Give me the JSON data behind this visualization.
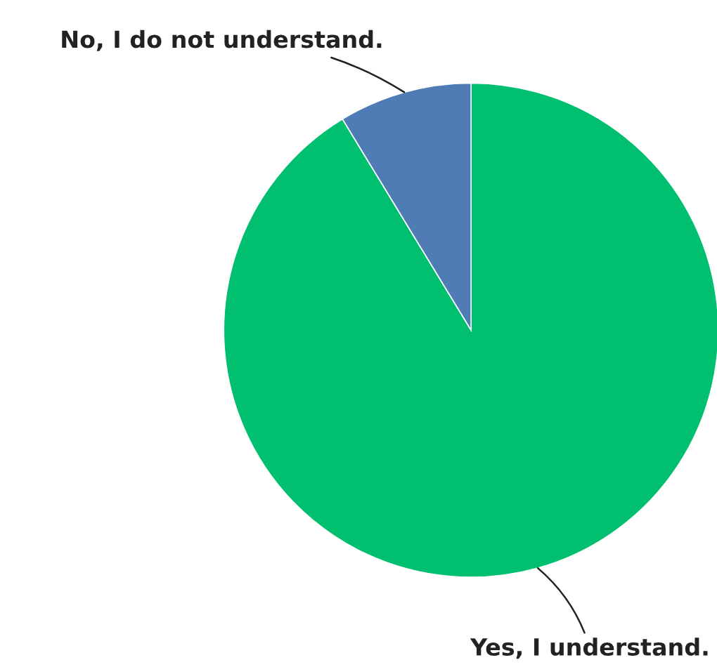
{
  "chart_data": {
    "type": "pie",
    "categories": [
      "Yes, I understand.",
      "No, I do not understand."
    ],
    "values": [
      91.3,
      8.7
    ],
    "colors": [
      "#00bf6f",
      "#507cb6"
    ]
  }
}
